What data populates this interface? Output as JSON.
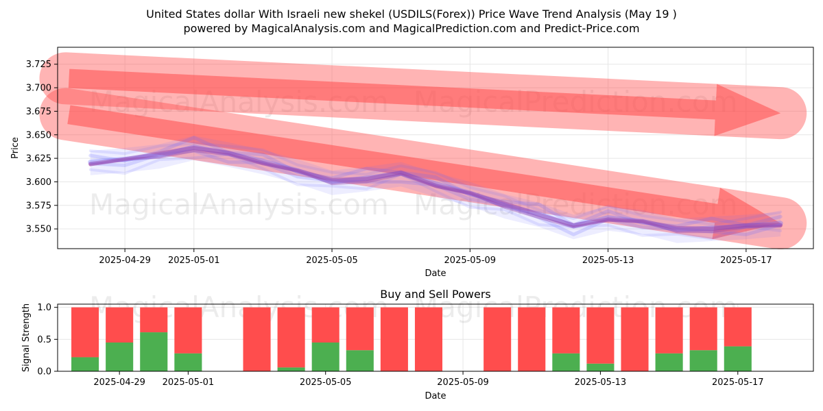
{
  "header": {
    "title_line1": "United States dollar With Israeli new shekel (USDILS(Forex)) Price Wave Trend Analysis (May 19 )",
    "title_line2": "powered by MagicalAnalysis.com and MagicalPrediction.com and Predict-Price.com"
  },
  "watermarks": {
    "left": "MagicalAnalysis.com",
    "right": "MagicalPrediction.com"
  },
  "colors": {
    "trend_band": "#ff4d4d",
    "wave": "#6a6aff",
    "wave_purple": "#9b3fa0",
    "buy": "#4caf50",
    "sell": "#ff4d4d",
    "grid": "#e6e6e6"
  },
  "chart_data": [
    {
      "type": "line",
      "title": "",
      "xlabel": "Date",
      "ylabel": "Price",
      "x_ticks": [
        "2025-04-29",
        "2025-05-01",
        "2025-05-05",
        "2025-05-09",
        "2025-05-13",
        "2025-05-17"
      ],
      "y_ticks": [
        "3.550",
        "3.575",
        "3.600",
        "3.625",
        "3.650",
        "3.675",
        "3.700",
        "3.725"
      ],
      "xlim": [
        "2025-04-27",
        "2025-05-19"
      ],
      "ylim": [
        3.529,
        3.743
      ],
      "grid": true,
      "series": [
        {
          "x": [
            "2025-04-28",
            "2025-04-29",
            "2025-04-30",
            "2025-05-01",
            "2025-05-02",
            "2025-05-03",
            "2025-05-04",
            "2025-05-05",
            "2025-05-06",
            "2025-05-07",
            "2025-05-08",
            "2025-05-09",
            "2025-05-10",
            "2025-05-11",
            "2025-05-12",
            "2025-05-13",
            "2025-05-14",
            "2025-05-15",
            "2025-05-16",
            "2025-05-17",
            "2025-05-18"
          ],
          "y": [
            3.621,
            3.624,
            3.628,
            3.637,
            3.63,
            3.622,
            3.612,
            3.6,
            3.604,
            3.609,
            3.598,
            3.588,
            3.575,
            3.566,
            3.553,
            3.562,
            3.558,
            3.549,
            3.551,
            3.553,
            3.556
          ]
        }
      ],
      "trend_bands": [
        {
          "x": [
            "2025-04-27",
            "2025-05-18"
          ],
          "y": [
            3.71,
            3.673
          ]
        },
        {
          "x": [
            "2025-04-27",
            "2025-05-18"
          ],
          "y": [
            3.672,
            3.556
          ]
        }
      ]
    },
    {
      "type": "bar",
      "title": "Buy and Sell Powers",
      "xlabel": "Date",
      "ylabel": "Signal Strength",
      "x_ticks": [
        "2025-04-29",
        "2025-05-01",
        "2025-05-05",
        "2025-05-09",
        "2025-05-13",
        "2025-05-17"
      ],
      "y_ticks": [
        "0.0",
        "0.5",
        "1.0"
      ],
      "xlim": [
        "2025-04-27",
        "2025-05-19"
      ],
      "ylim": [
        0,
        1.05
      ],
      "grid": true,
      "categories": [
        "2025-04-28",
        "2025-04-29",
        "2025-04-30",
        "2025-05-01",
        "2025-05-03",
        "2025-05-04",
        "2025-05-05",
        "2025-05-06",
        "2025-05-07",
        "2025-05-08",
        "2025-05-10",
        "2025-05-11",
        "2025-05-12",
        "2025-05-13",
        "2025-05-14",
        "2025-05-15",
        "2025-05-16",
        "2025-05-17"
      ],
      "series": [
        {
          "values": [
            0.22,
            0.45,
            0.61,
            0.28,
            0.0,
            0.06,
            0.45,
            0.33,
            0.0,
            0.0,
            0.0,
            0.0,
            0.28,
            0.12,
            0.0,
            0.28,
            0.33,
            0.39
          ]
        },
        {
          "values": [
            0.78,
            0.55,
            0.39,
            0.72,
            1.0,
            0.94,
            0.55,
            0.67,
            1.0,
            1.0,
            1.0,
            1.0,
            0.72,
            0.88,
            1.0,
            0.72,
            0.67,
            0.61
          ]
        }
      ]
    }
  ]
}
